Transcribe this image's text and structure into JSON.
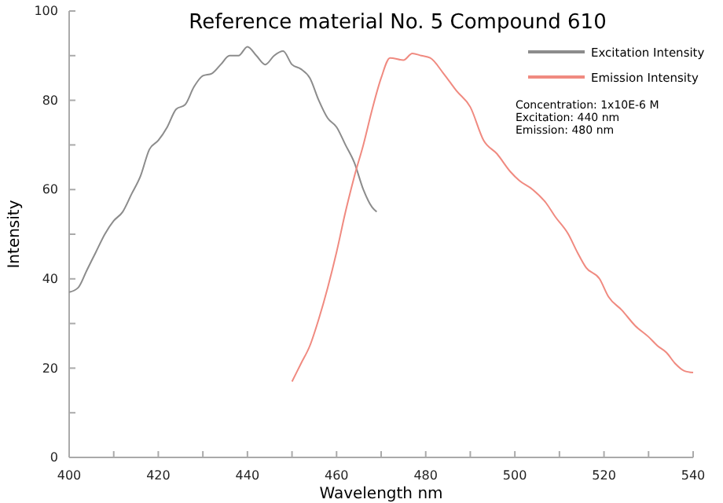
{
  "chart_data": {
    "type": "line",
    "title": "Reference material No. 5  Compound 610",
    "xlabel": "Wavelength nm",
    "ylabel": "Intensity",
    "xlim": [
      400,
      540
    ],
    "xticks": [
      400,
      {
        "value": 410,
        "label": null
      },
      420,
      {
        "value": 430,
        "label": null
      },
      440,
      {
        "value": 450,
        "label": null
      },
      460,
      {
        "value": 470,
        "label": null
      },
      480,
      {
        "value": 490,
        "label": null
      },
      500,
      {
        "value": 510,
        "label": null
      },
      520,
      {
        "value": 530,
        "label": null
      },
      540
    ],
    "ylim": [
      0,
      100
    ],
    "yticks": [
      0,
      {
        "value": 10,
        "label": null
      },
      20,
      {
        "value": 30,
        "label": null
      },
      40,
      {
        "value": 50,
        "label": null
      },
      60,
      {
        "value": 70,
        "label": null
      },
      80,
      {
        "value": 90,
        "label": null
      },
      100
    ],
    "grid": false,
    "legend": "top right",
    "marker": "none",
    "line_style": "solid",
    "annotations": [
      "Concentration: 1x10E-6 M",
      "Excitation: 440 nm",
      "Emission: 480 nm"
    ],
    "series": [
      {
        "name": "Excitation Intensity",
        "color": "#8c8c8c",
        "x": [
          400,
          402,
          404,
          406,
          408,
          410,
          412,
          414,
          416,
          418,
          420,
          422,
          424,
          426,
          428,
          430,
          432,
          434,
          436,
          438,
          440,
          442,
          444,
          446,
          448,
          450,
          452,
          454,
          456,
          458,
          460,
          462,
          464,
          466,
          468,
          469
        ],
        "values": [
          37,
          38,
          42,
          46,
          50,
          53,
          55,
          59,
          63,
          69,
          71,
          74,
          78,
          79,
          83,
          85.5,
          86,
          88,
          90,
          90,
          92,
          90,
          88,
          90,
          91,
          88,
          87,
          85,
          80,
          76,
          74,
          70,
          66,
          60,
          56,
          55
        ]
      },
      {
        "name": "Emission Intensity",
        "color": "#f08a80",
        "x": [
          450,
          452,
          454,
          456,
          458,
          460,
          462,
          464,
          466,
          468,
          470,
          472,
          475,
          477,
          479,
          481,
          484,
          487,
          490,
          493,
          496,
          499,
          501,
          504,
          507,
          509,
          512,
          514,
          516,
          519,
          521,
          524,
          527,
          530,
          532,
          534,
          536,
          538,
          540
        ],
        "values": [
          17,
          21,
          25,
          31,
          38,
          46,
          55,
          63,
          70,
          78,
          85,
          89.5,
          89,
          90.5,
          90,
          89.5,
          86,
          82,
          78.5,
          71,
          68,
          64,
          62,
          60,
          57,
          54,
          50,
          46,
          42.5,
          40,
          36,
          33,
          29.5,
          27,
          25,
          23.5,
          21,
          19.4,
          19
        ]
      }
    ]
  }
}
